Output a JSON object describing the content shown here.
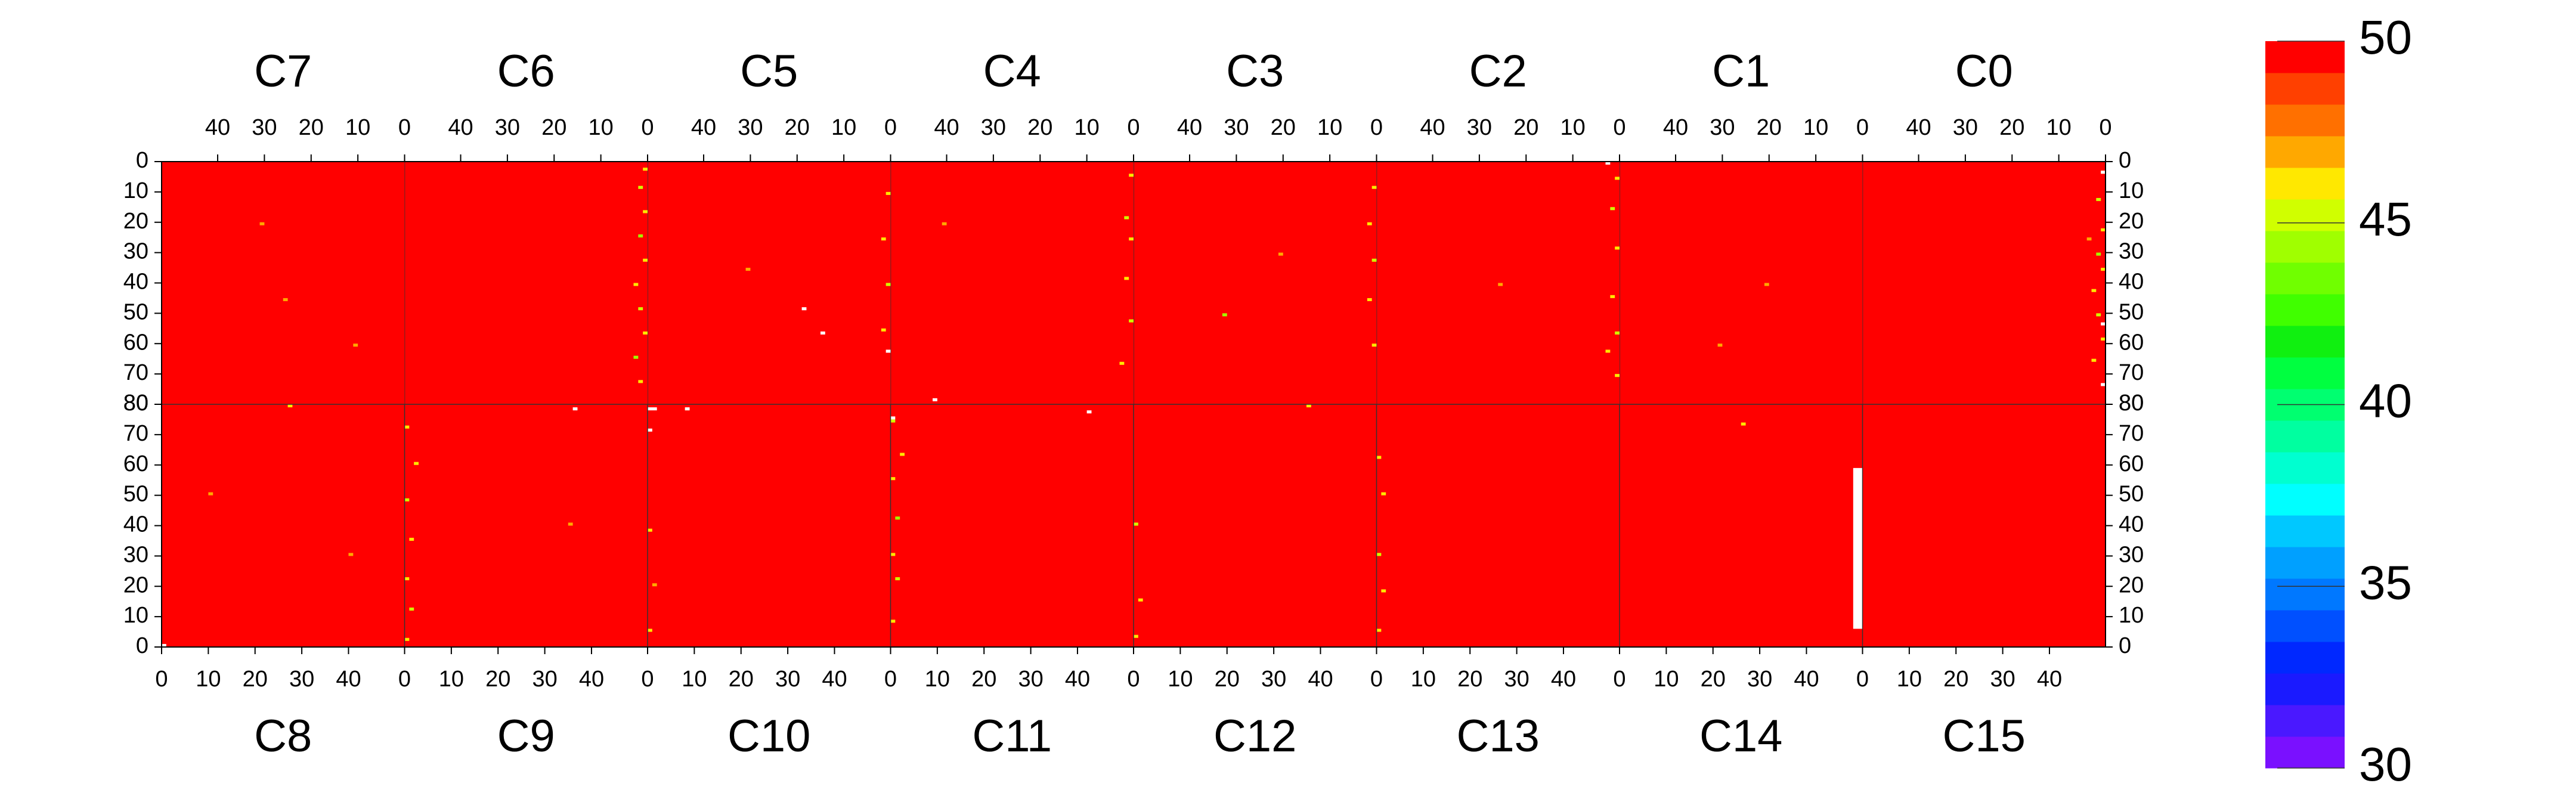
{
  "chart_data": {
    "type": "heatmap",
    "xticks": [
      0,
      10,
      20,
      30,
      40
    ],
    "yticks": [
      0,
      10,
      20,
      30,
      40,
      50,
      60,
      70,
      80
    ],
    "xlim": [
      0,
      52
    ],
    "ylim": [
      0,
      80
    ],
    "zlim": [
      30,
      50
    ],
    "zticks": [
      30,
      35,
      40,
      45,
      50
    ],
    "colors": [
      "#7a10ff",
      "#4a18ff",
      "#1a1aff",
      "#0028ff",
      "#0050ff",
      "#0078ff",
      "#00a0ff",
      "#00c8ff",
      "#00ffff",
      "#00ffd0",
      "#00ffa0",
      "#00ff70",
      "#00ff40",
      "#10f010",
      "#40ff00",
      "#70ff00",
      "#a0ff00",
      "#d0ff00",
      "#ffe800",
      "#ffa800",
      "#ff7000",
      "#ff4000",
      "#ff0000"
    ],
    "panels": [
      {
        "name": "C0",
        "value": 50,
        "spots": [
          [
            0,
            3,
            47
          ],
          [
            1,
            12,
            46
          ],
          [
            0,
            22,
            47
          ],
          [
            1,
            30,
            45
          ],
          [
            0,
            35,
            47
          ],
          [
            2,
            42,
            47
          ],
          [
            1,
            50,
            46
          ],
          [
            0,
            58,
            47
          ],
          [
            3,
            25,
            48
          ],
          [
            2,
            65,
            47
          ]
        ],
        "missing": [
          [
            0,
            1,
            3,
            4
          ],
          [
            0,
            1,
            53,
            54
          ],
          [
            0,
            1,
            73,
            74
          ]
        ]
      },
      {
        "name": "C1",
        "value": 50,
        "spots": [
          [
            20,
            40,
            48
          ],
          [
            30,
            60,
            48
          ]
        ],
        "missing": []
      },
      {
        "name": "C2",
        "value": 50,
        "spots": [
          [
            0,
            5,
            47
          ],
          [
            1,
            15,
            46
          ],
          [
            0,
            28,
            47
          ],
          [
            1,
            44,
            47
          ],
          [
            0,
            56,
            46
          ],
          [
            2,
            62,
            47
          ],
          [
            25,
            40,
            48
          ],
          [
            0,
            70,
            47
          ]
        ],
        "missing": [
          [
            2,
            3,
            0,
            1
          ]
        ]
      },
      {
        "name": "C3",
        "value": 50,
        "spots": [
          [
            0,
            8,
            47
          ],
          [
            1,
            20,
            47
          ],
          [
            0,
            32,
            46
          ],
          [
            1,
            45,
            47
          ],
          [
            0,
            60,
            47
          ],
          [
            32,
            50,
            45
          ],
          [
            20,
            30,
            48
          ]
        ],
        "missing": []
      },
      {
        "name": "C4",
        "value": 50,
        "spots": [
          [
            0,
            4,
            47
          ],
          [
            1,
            18,
            46
          ],
          [
            0,
            25,
            47
          ],
          [
            1,
            38,
            47
          ],
          [
            0,
            52,
            46
          ],
          [
            2,
            66,
            47
          ],
          [
            40,
            20,
            48
          ]
        ],
        "missing": [
          [
            42,
            43,
            78,
            79
          ]
        ]
      },
      {
        "name": "C5",
        "value": 50,
        "spots": [
          [
            0,
            10,
            47
          ],
          [
            1,
            25,
            47
          ],
          [
            0,
            40,
            46
          ],
          [
            1,
            55,
            47
          ],
          [
            30,
            35,
            48
          ]
        ],
        "missing": [
          [
            0,
            1,
            62,
            63
          ],
          [
            18,
            19,
            48,
            49
          ],
          [
            14,
            15,
            56,
            57
          ]
        ]
      },
      {
        "name": "C6",
        "value": 50,
        "spots": [
          [
            0,
            2,
            47
          ],
          [
            1,
            8,
            46
          ],
          [
            0,
            16,
            47
          ],
          [
            1,
            24,
            45
          ],
          [
            0,
            32,
            47
          ],
          [
            2,
            40,
            47
          ],
          [
            1,
            48,
            46
          ],
          [
            0,
            56,
            47
          ],
          [
            2,
            64,
            45
          ],
          [
            1,
            72,
            47
          ]
        ],
        "missing": []
      },
      {
        "name": "C7",
        "value": 50,
        "spots": [
          [
            30,
            20,
            48
          ],
          [
            10,
            60,
            48
          ],
          [
            25,
            45,
            48
          ]
        ],
        "missing": []
      },
      {
        "name": "C8",
        "value": 50,
        "spots": [
          [
            27,
            79,
            47
          ],
          [
            40,
            30,
            48
          ],
          [
            10,
            50,
            48
          ]
        ],
        "missing": [
          [
            0,
            1,
            0,
            1
          ]
        ]
      },
      {
        "name": "C9",
        "value": 50,
        "spots": [
          [
            0,
            2,
            47
          ],
          [
            1,
            12,
            46
          ],
          [
            0,
            22,
            47
          ],
          [
            1,
            35,
            47
          ],
          [
            0,
            48,
            46
          ],
          [
            2,
            60,
            47
          ],
          [
            0,
            72,
            47
          ],
          [
            35,
            40,
            48
          ]
        ],
        "missing": [
          [
            36,
            37,
            78,
            79
          ]
        ]
      },
      {
        "name": "C10",
        "value": 50,
        "spots": [
          [
            0,
            5,
            47
          ],
          [
            1,
            20,
            48
          ],
          [
            0,
            38,
            47
          ],
          [
            8,
            78,
            48
          ]
        ],
        "missing": [
          [
            0,
            2,
            78,
            79
          ],
          [
            0,
            1,
            71,
            72
          ],
          [
            8,
            9,
            78,
            79
          ]
        ]
      },
      {
        "name": "C11",
        "value": 50,
        "spots": [
          [
            0,
            8,
            47
          ],
          [
            1,
            22,
            46
          ],
          [
            0,
            30,
            47
          ],
          [
            1,
            42,
            45
          ],
          [
            0,
            55,
            47
          ],
          [
            2,
            63,
            47
          ],
          [
            0,
            74,
            46
          ]
        ],
        "missing": [
          [
            0,
            1,
            75,
            76
          ],
          [
            42,
            43,
            77,
            78
          ]
        ]
      },
      {
        "name": "C12",
        "value": 50,
        "spots": [
          [
            0,
            3,
            47
          ],
          [
            1,
            15,
            47
          ],
          [
            0,
            40,
            46
          ],
          [
            37,
            79,
            47
          ]
        ],
        "missing": []
      },
      {
        "name": "C13",
        "value": 50,
        "spots": [
          [
            0,
            5,
            47
          ],
          [
            1,
            18,
            47
          ],
          [
            0,
            30,
            46
          ],
          [
            1,
            50,
            47
          ],
          [
            0,
            62,
            47
          ]
        ],
        "missing": []
      },
      {
        "name": "C14",
        "value": 50,
        "spots": [
          [
            26,
            73,
            47
          ]
        ],
        "missing": [
          [
            50,
            52,
            6,
            59
          ]
        ]
      },
      {
        "name": "C15",
        "value": 50,
        "spots": [],
        "missing": []
      }
    ]
  }
}
